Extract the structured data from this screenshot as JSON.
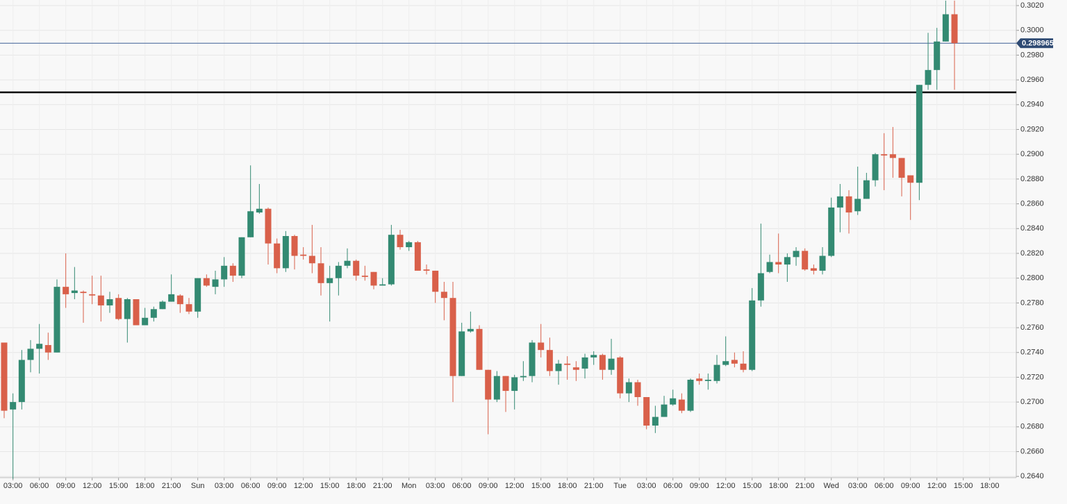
{
  "chart_data": {
    "type": "candlestick",
    "categories": [
      null,
      "03:00",
      null,
      null,
      "06:00",
      null,
      null,
      "09:00",
      null,
      null,
      "12:00",
      null,
      null,
      "15:00",
      null,
      null,
      "18:00",
      null,
      null,
      "21:00",
      null,
      null,
      "Sun",
      null,
      null,
      "03:00",
      null,
      null,
      "06:00",
      null,
      null,
      "09:00",
      null,
      null,
      "12:00",
      null,
      null,
      "15:00",
      null,
      null,
      "18:00",
      null,
      null,
      "21:00",
      null,
      null,
      "Mon",
      null,
      null,
      "03:00",
      null,
      null,
      "06:00",
      null,
      null,
      "09:00",
      null,
      null,
      "12:00",
      null,
      null,
      "15:00",
      null,
      null,
      "18:00",
      null,
      null,
      "21:00",
      null,
      null,
      "Tue",
      null,
      null,
      "03:00",
      null,
      null,
      "06:00",
      null,
      null,
      "09:00",
      null,
      null,
      "12:00",
      null,
      null,
      "15:00",
      null,
      null,
      "18:00",
      null,
      null,
      "21:00",
      null,
      null,
      "Wed",
      null,
      null,
      "03:00",
      null,
      null,
      "06:00",
      null,
      null,
      "09:00",
      null,
      null,
      "12:00",
      null,
      null,
      "15:00",
      null,
      null,
      "18:00"
    ],
    "open": [
      0.2748,
      0.2694,
      0.27,
      0.2734,
      0.2743,
      0.2746,
      0.274,
      0.2793,
      0.2788,
      0.2789,
      0.2787,
      0.2786,
      0.2778,
      0.2784,
      0.2767,
      0.2783,
      0.2762,
      0.2768,
      0.2775,
      0.2781,
      0.2786,
      0.2779,
      0.2773,
      0.28,
      0.2793,
      0.2799,
      0.281,
      0.2802,
      0.2833,
      0.2853,
      0.2856,
      0.2828,
      0.2808,
      0.2834,
      0.2819,
      0.2818,
      0.2812,
      0.2796,
      0.28,
      0.281,
      0.2814,
      0.2802,
      0.2805,
      0.2794,
      0.2795,
      0.2835,
      0.2825,
      0.2829,
      0.2807,
      0.2806,
      0.2789,
      0.2784,
      0.2721,
      0.2757,
      0.2759,
      0.2726,
      0.2702,
      0.2721,
      0.2709,
      0.272,
      0.2721,
      0.2748,
      0.2742,
      0.2725,
      0.2731,
      0.2728,
      0.2727,
      0.2736,
      0.2738,
      0.2726,
      0.2736,
      0.2707,
      0.2716,
      0.2704,
      0.2681,
      0.2688,
      0.2698,
      0.2702,
      0.2693,
      0.2719,
      0.2717,
      0.2717,
      0.273,
      0.2734,
      0.2731,
      0.2726,
      0.2782,
      0.2805,
      0.2813,
      0.2811,
      0.2817,
      0.2822,
      0.2808,
      0.2806,
      0.2818,
      0.2857,
      0.2866,
      0.2854,
      0.2864,
      0.2879,
      0.29,
      0.29,
      0.2897,
      0.2883,
      0.2877,
      0.2956,
      0.2968,
      0.2991,
      0.3013,
      null,
      null,
      null,
      null
    ],
    "high": [
      0.2748,
      0.2707,
      0.2742,
      0.275,
      0.2763,
      0.2756,
      0.2799,
      0.282,
      0.2809,
      0.279,
      0.2802,
      0.2802,
      0.2789,
      0.2787,
      0.2784,
      0.2783,
      0.2776,
      0.2777,
      0.2782,
      0.2803,
      0.2787,
      0.2784,
      0.28,
      0.2803,
      0.2806,
      0.2817,
      0.2812,
      0.2833,
      0.2891,
      0.2876,
      0.2857,
      0.2832,
      0.2838,
      0.2835,
      0.2825,
      0.2843,
      0.2825,
      0.281,
      0.2813,
      0.2824,
      0.2815,
      0.281,
      0.2805,
      0.28,
      0.2843,
      0.2839,
      0.283,
      0.283,
      0.2811,
      0.2806,
      0.2797,
      0.2797,
      0.2764,
      0.2773,
      0.2762,
      0.2726,
      0.2725,
      0.2721,
      0.2722,
      0.2733,
      0.275,
      0.2763,
      0.2752,
      0.2734,
      0.2737,
      0.2733,
      0.2739,
      0.2741,
      0.2739,
      0.2751,
      0.2737,
      0.2719,
      0.2718,
      0.2704,
      0.2697,
      0.2705,
      0.271,
      0.2707,
      0.2719,
      0.2723,
      0.2723,
      0.2738,
      0.2753,
      0.274,
      0.2741,
      0.2792,
      0.2844,
      0.2819,
      0.2836,
      0.282,
      0.2825,
      0.2824,
      0.2811,
      0.2825,
      0.2865,
      0.2876,
      0.2871,
      0.289,
      0.2885,
      0.2901,
      0.2917,
      0.2922,
      0.2897,
      0.2883,
      0.2956,
      0.2998,
      0.3002,
      0.3024,
      0.3024,
      null,
      null,
      null,
      null
    ],
    "low": [
      0.2687,
      0.2638,
      0.2694,
      0.2724,
      0.2723,
      0.2734,
      0.274,
      0.2776,
      0.2783,
      0.2764,
      0.2779,
      0.2765,
      0.2772,
      0.2766,
      0.2748,
      0.2762,
      0.2762,
      0.2765,
      0.2775,
      0.2781,
      0.2772,
      0.2771,
      0.2768,
      0.2793,
      0.2787,
      0.2793,
      0.2797,
      0.28,
      0.2833,
      0.2852,
      0.2811,
      0.2804,
      0.2805,
      0.2807,
      0.2815,
      0.2804,
      0.2786,
      0.2765,
      0.2786,
      0.2808,
      0.2798,
      0.2798,
      0.2791,
      0.2794,
      0.2794,
      0.2823,
      0.2822,
      0.2806,
      0.2803,
      0.278,
      0.2766,
      0.27,
      0.2721,
      0.2756,
      0.2726,
      0.2674,
      0.27,
      0.2692,
      0.2694,
      0.2717,
      0.2716,
      0.2736,
      0.2721,
      0.2714,
      0.2718,
      0.2717,
      0.2719,
      0.273,
      0.2718,
      0.2722,
      0.2703,
      0.27,
      0.2697,
      0.2678,
      0.2675,
      0.2688,
      0.2697,
      0.2691,
      0.2692,
      0.2714,
      0.271,
      0.2715,
      0.2729,
      0.2728,
      0.2724,
      0.2725,
      0.2777,
      0.2804,
      0.2804,
      0.2797,
      0.281,
      0.2806,
      0.2803,
      0.2803,
      0.2817,
      0.2837,
      0.2836,
      0.2851,
      0.2864,
      0.2874,
      0.2871,
      0.2881,
      0.2866,
      0.2847,
      0.2863,
      0.2952,
      0.2952,
      0.2991,
      0.2952,
      null,
      null,
      null,
      null
    ],
    "close": [
      0.2693,
      0.27,
      0.2734,
      0.2743,
      0.2747,
      0.274,
      0.2793,
      0.2787,
      0.279,
      0.2788,
      0.2786,
      0.2778,
      0.2783,
      0.2767,
      0.2783,
      0.2762,
      0.2768,
      0.2775,
      0.2781,
      0.2787,
      0.2779,
      0.2773,
      0.28,
      0.2794,
      0.2799,
      0.281,
      0.2802,
      0.2833,
      0.2854,
      0.2856,
      0.2828,
      0.2808,
      0.2834,
      0.2818,
      0.2818,
      0.2812,
      0.2796,
      0.28,
      0.281,
      0.2814,
      0.2802,
      0.2801,
      0.2794,
      0.2795,
      0.2835,
      0.2825,
      0.2829,
      0.2806,
      0.2806,
      0.2789,
      0.2784,
      0.2721,
      0.2757,
      0.2759,
      0.2726,
      0.2702,
      0.2721,
      0.2709,
      0.272,
      0.2721,
      0.2748,
      0.2742,
      0.2725,
      0.2731,
      0.273,
      0.2726,
      0.2736,
      0.2738,
      0.2726,
      0.2735,
      0.2707,
      0.2716,
      0.2704,
      0.2681,
      0.2688,
      0.2698,
      0.2703,
      0.2693,
      0.2718,
      0.2717,
      0.2718,
      0.273,
      0.2733,
      0.2731,
      0.2726,
      0.2782,
      0.2804,
      0.2813,
      0.2811,
      0.2817,
      0.2822,
      0.2807,
      0.2806,
      0.2818,
      0.2857,
      0.2866,
      0.2853,
      0.2864,
      0.2879,
      0.29,
      0.2899,
      0.2897,
      0.2881,
      0.2877,
      0.2956,
      0.2968,
      0.2991,
      0.3013,
      0.298965,
      null,
      null,
      null,
      null
    ],
    "up_color": "#338a72",
    "down_color": "#d9604a",
    "ylim": [
      0.2639,
      0.30245
    ],
    "yticks": [
      {
        "value": 0.264,
        "label": "0.2640"
      },
      {
        "value": 0.266,
        "label": "0.2660"
      },
      {
        "value": 0.268,
        "label": "0.2680"
      },
      {
        "value": 0.27,
        "label": "0.2700"
      },
      {
        "value": 0.272,
        "label": "0.2720"
      },
      {
        "value": 0.274,
        "label": "0.2740"
      },
      {
        "value": 0.276,
        "label": "0.2760"
      },
      {
        "value": 0.278,
        "label": "0.2780"
      },
      {
        "value": 0.28,
        "label": "0.2800"
      },
      {
        "value": 0.282,
        "label": "0.2820"
      },
      {
        "value": 0.284,
        "label": "0.2840"
      },
      {
        "value": 0.286,
        "label": "0.2860"
      },
      {
        "value": 0.288,
        "label": "0.2880"
      },
      {
        "value": 0.29,
        "label": "0.2900"
      },
      {
        "value": 0.292,
        "label": "0.2920"
      },
      {
        "value": 0.294,
        "label": "0.2940"
      },
      {
        "value": 0.296,
        "label": "0.2960"
      },
      {
        "value": 0.298,
        "label": "0.2980"
      },
      {
        "value": 0.3,
        "label": "0.3000"
      },
      {
        "value": 0.302,
        "label": "0.3020"
      }
    ],
    "grid": true,
    "price_line": {
      "value": 0.298965,
      "color": "#3d5f96"
    },
    "hlines": [
      {
        "value": 0.295,
        "color": "#000000"
      }
    ]
  }
}
